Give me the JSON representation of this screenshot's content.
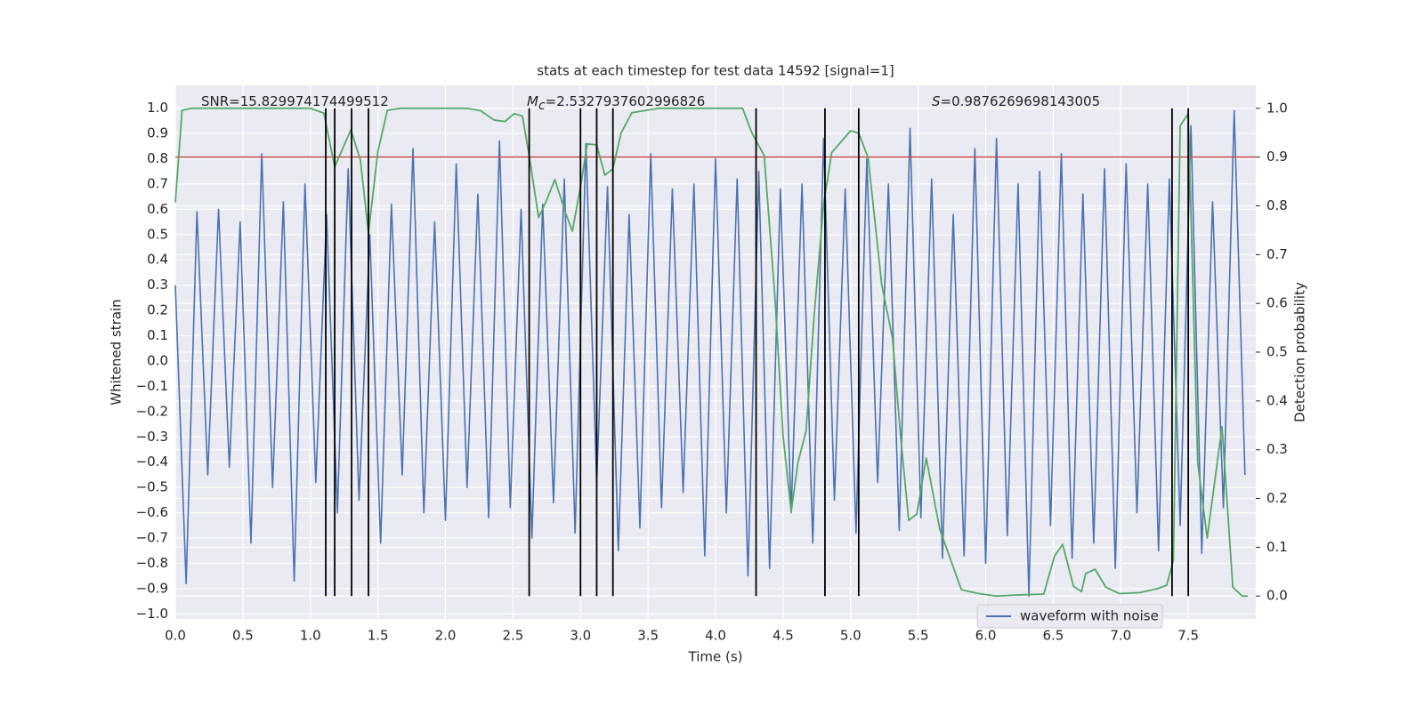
{
  "chart_data": {
    "type": "line",
    "title": "stats at each timestep for test data 14592 [signal=1]",
    "x_label": "Time (s)",
    "y_label": "Whitened strain",
    "y2_label": "Detection probability",
    "annotations": [
      [
        {
          "text": "SNR=15.829974174499512",
          "style": "normal"
        }
      ],
      [
        {
          "text": "M",
          "style": "italic"
        },
        {
          "text": "c",
          "style": "sub"
        },
        {
          "text": "=2.5327937602996826",
          "style": "normal"
        }
      ],
      [
        {
          "text": "S",
          "style": "italic"
        },
        {
          "text": "=0.9876269698143005",
          "style": "normal"
        }
      ]
    ],
    "xlim": [
      0,
      8
    ],
    "ylim": [
      -1.02,
      1.09
    ],
    "y2lim": [
      -0.047,
      1.047
    ],
    "grid": true,
    "legend": "lower right",
    "xticks": [
      {
        "value": 0,
        "label": "0.0"
      },
      0.5,
      {
        "value": 1,
        "label": "1.0"
      },
      1.5,
      {
        "value": 2,
        "label": "2.0"
      },
      2.5,
      {
        "value": 3,
        "label": "3.0"
      },
      3.5,
      {
        "value": 4,
        "label": "4.0"
      },
      4.5,
      {
        "value": 5,
        "label": "5.0"
      },
      5.5,
      {
        "value": 6,
        "label": "6.0"
      },
      6.5,
      {
        "value": 7,
        "label": "7.0"
      },
      7.5
    ],
    "yticks": [
      {
        "value": -1,
        "label": "−1.0"
      },
      {
        "value": -0.9,
        "label": "−0.9"
      },
      {
        "value": -0.8,
        "label": "−0.8"
      },
      {
        "value": -0.7,
        "label": "−0.7"
      },
      {
        "value": -0.6,
        "label": "−0.6"
      },
      {
        "value": -0.5,
        "label": "−0.5"
      },
      {
        "value": -0.4,
        "label": "−0.4"
      },
      {
        "value": -0.3,
        "label": "−0.3"
      },
      {
        "value": -0.2,
        "label": "−0.2"
      },
      {
        "value": -0.1,
        "label": "−0.1"
      },
      {
        "value": 0,
        "label": "0.0"
      },
      0.1,
      0.2,
      0.3,
      0.4,
      0.5,
      0.6,
      0.7,
      0.8,
      0.9,
      {
        "value": 1,
        "label": "1.0"
      }
    ],
    "y2ticks": [
      {
        "value": 0,
        "label": "0.0"
      },
      0.1,
      0.2,
      0.3,
      0.4,
      0.5,
      0.6,
      0.7,
      0.8,
      0.9,
      {
        "value": 1,
        "label": "1.0"
      }
    ],
    "series": [
      {
        "name": "waveform with noise",
        "color": "#4c72b0",
        "axis": "y",
        "x": [
          0,
          0.08,
          0.16,
          0.24,
          0.32,
          0.4,
          0.48,
          0.56,
          0.64,
          0.72,
          0.8,
          0.88,
          0.96,
          1.04,
          1.12,
          1.2,
          1.28,
          1.36,
          1.44,
          1.52,
          1.6,
          1.68,
          1.76,
          1.84,
          1.92,
          2,
          2.08,
          2.16,
          2.24,
          2.32,
          2.4,
          2.48,
          2.56,
          2.64,
          2.72,
          2.8,
          2.88,
          2.96,
          3.04,
          3.12,
          3.2,
          3.28,
          3.36,
          3.44,
          3.52,
          3.6,
          3.68,
          3.76,
          3.84,
          3.92,
          4,
          4.08,
          4.16,
          4.24,
          4.32,
          4.4,
          4.48,
          4.56,
          4.64,
          4.72,
          4.8,
          4.88,
          4.96,
          5.04,
          5.12,
          5.2,
          5.28,
          5.36,
          5.44,
          5.52,
          5.6,
          5.68,
          5.76,
          5.84,
          5.92,
          6,
          6.08,
          6.16,
          6.24,
          6.32,
          6.4,
          6.48,
          6.56,
          6.64,
          6.72,
          6.8,
          6.88,
          6.96,
          7.04,
          7.12,
          7.2,
          7.28,
          7.36,
          7.44,
          7.52,
          7.6,
          7.68,
          7.76,
          7.84,
          7.92
        ],
        "values": [
          0.3,
          -0.88,
          0.59,
          -0.45,
          0.6,
          -0.42,
          0.55,
          -0.72,
          0.82,
          -0.5,
          0.63,
          -0.87,
          0.7,
          -0.48,
          0.58,
          -0.6,
          0.76,
          -0.55,
          0.5,
          -0.72,
          0.62,
          -0.45,
          0.84,
          -0.6,
          0.55,
          -0.63,
          0.78,
          -0.5,
          0.66,
          -0.62,
          0.87,
          -0.58,
          0.6,
          -0.7,
          0.62,
          -0.56,
          0.72,
          -0.68,
          0.86,
          -0.48,
          0.69,
          -0.75,
          0.58,
          -0.66,
          0.82,
          -0.58,
          0.68,
          -0.52,
          0.7,
          -0.77,
          0.8,
          -0.6,
          0.72,
          -0.85,
          0.75,
          -0.82,
          0.68,
          -0.6,
          0.7,
          -0.72,
          0.88,
          -0.55,
          0.68,
          -0.68,
          0.8,
          -0.48,
          0.7,
          -0.67,
          0.92,
          -0.62,
          0.72,
          -0.78,
          0.58,
          -0.77,
          0.84,
          -0.8,
          0.88,
          -0.69,
          0.7,
          -0.93,
          0.75,
          -0.65,
          0.82,
          -0.78,
          0.66,
          -0.72,
          0.76,
          -0.82,
          0.78,
          -0.6,
          0.7,
          -0.75,
          0.72,
          -0.65,
          0.93,
          -0.76,
          0.63,
          -0.58,
          0.99,
          -0.45
        ]
      },
      {
        "color": "#55a868",
        "axis": "y2",
        "x": [
          0,
          0.05,
          0.12,
          1.0,
          1.1,
          1.18,
          1.3,
          1.37,
          1.43,
          1.5,
          1.57,
          1.67,
          2.16,
          2.26,
          2.36,
          2.44,
          2.51,
          2.57,
          2.62,
          2.69,
          2.75,
          2.81,
          2.89,
          2.94,
          3.0,
          3.05,
          3.12,
          3.18,
          3.24,
          3.3,
          3.38,
          3.58,
          4.2,
          4.27,
          4.36,
          4.44,
          4.5,
          4.56,
          4.61,
          4.67,
          4.73,
          4.8,
          4.86,
          5.0,
          5.06,
          5.13,
          5.23,
          5.31,
          5.37,
          5.43,
          5.49,
          5.56,
          5.66,
          5.82,
          5.95,
          6.08,
          6.22,
          6.43,
          6.51,
          6.57,
          6.65,
          6.71,
          6.74,
          6.81,
          6.89,
          6.99,
          7.14,
          7.27,
          7.34,
          7.39,
          7.44,
          7.5,
          7.57,
          7.64,
          7.75,
          7.83,
          7.9,
          7.94
        ],
        "values": [
          0.807,
          0.996,
          1.0,
          1.0,
          0.99,
          0.88,
          0.956,
          0.894,
          0.745,
          0.912,
          0.996,
          1.0,
          1.0,
          0.995,
          0.976,
          0.973,
          0.989,
          0.984,
          0.903,
          0.776,
          0.812,
          0.854,
          0.785,
          0.748,
          0.839,
          0.927,
          0.925,
          0.863,
          0.876,
          0.949,
          0.991,
          1.0,
          1.0,
          0.949,
          0.903,
          0.611,
          0.328,
          0.173,
          0.274,
          0.338,
          0.575,
          0.803,
          0.909,
          0.954,
          0.949,
          0.898,
          0.639,
          0.529,
          0.328,
          0.155,
          0.168,
          0.283,
          0.137,
          0.013,
          0.005,
          0.0,
          0.002,
          0.004,
          0.082,
          0.106,
          0.02,
          0.009,
          0.046,
          0.055,
          0.018,
          0.005,
          0.007,
          0.015,
          0.022,
          0.073,
          0.964,
          0.989,
          0.274,
          0.119,
          0.347,
          0.018,
          0.0,
          0.0
        ]
      }
    ],
    "threshold": {
      "value": 0.9,
      "axis": "y2",
      "color": "#c44e52"
    },
    "markers": {
      "x": [
        1.114,
        1.18,
        1.305,
        1.43,
        2.62,
        3.0,
        3.12,
        3.24,
        4.3,
        4.81,
        5.06,
        7.38,
        7.5
      ],
      "ymin": 0,
      "ymax": 1,
      "axis": "y2",
      "color": "#000000"
    }
  }
}
